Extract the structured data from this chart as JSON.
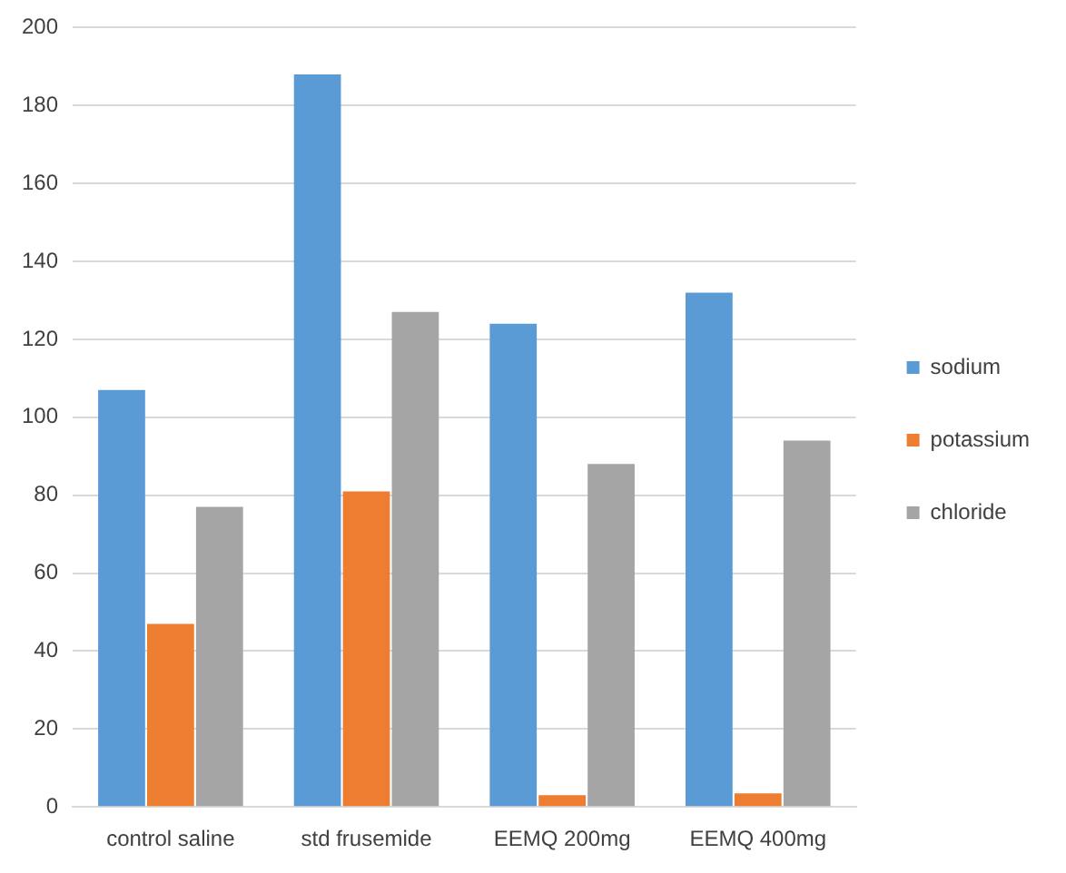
{
  "chart_data": {
    "type": "bar",
    "categories": [
      "control saline",
      "std frusemide",
      "EEMQ 200mg",
      "EEMQ 400mg"
    ],
    "series": [
      {
        "name": "sodium",
        "color": "#5b9bd5",
        "values": [
          107,
          188,
          124,
          132
        ]
      },
      {
        "name": "potassium",
        "color": "#ed7d31",
        "values": [
          47,
          81,
          3,
          3.5
        ]
      },
      {
        "name": "chloride",
        "color": "#a5a5a5",
        "values": [
          77,
          127,
          88,
          94
        ]
      }
    ],
    "ylim": [
      0,
      200
    ],
    "yticks": [
      0,
      20,
      40,
      60,
      80,
      100,
      120,
      140,
      160,
      180,
      200
    ],
    "grid": "y",
    "legend": "right"
  }
}
